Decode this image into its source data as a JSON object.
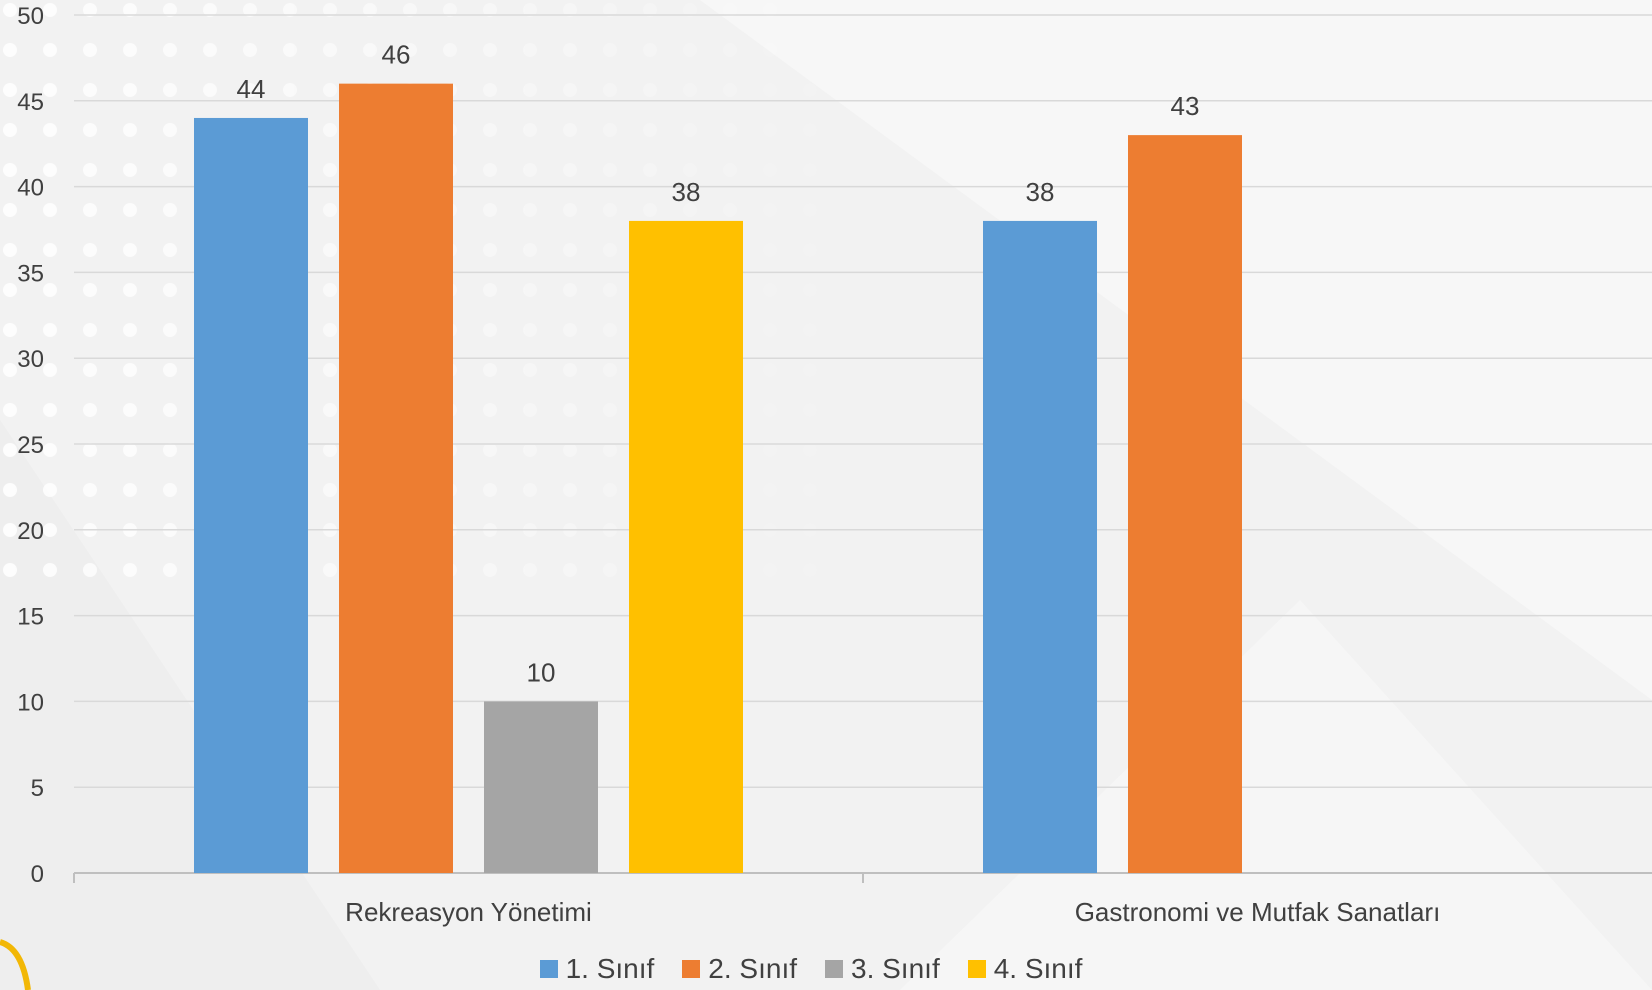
{
  "chart_data": {
    "type": "bar",
    "categories": [
      "Rekreasyon Yönetimi",
      "Gastronomi ve Mutfak Sanatları"
    ],
    "series": [
      {
        "name": "1. Sınıf",
        "color": "#5b9bd5",
        "values": [
          44,
          38
        ]
      },
      {
        "name": "2. Sınıf",
        "color": "#ed7d31",
        "values": [
          46,
          43
        ]
      },
      {
        "name": "3. Sınıf",
        "color": "#a5a5a5",
        "values": [
          10,
          null
        ]
      },
      {
        "name": "4. Sınıf",
        "color": "#ffc000",
        "values": [
          38,
          null
        ]
      }
    ],
    "y_ticks": [
      "0",
      "5",
      "10",
      "15",
      "20",
      "25",
      "30",
      "35",
      "40",
      "45",
      "50"
    ],
    "ylim": [
      0,
      50
    ],
    "grid": true,
    "legend_position": "bottom",
    "data_labels": true
  }
}
